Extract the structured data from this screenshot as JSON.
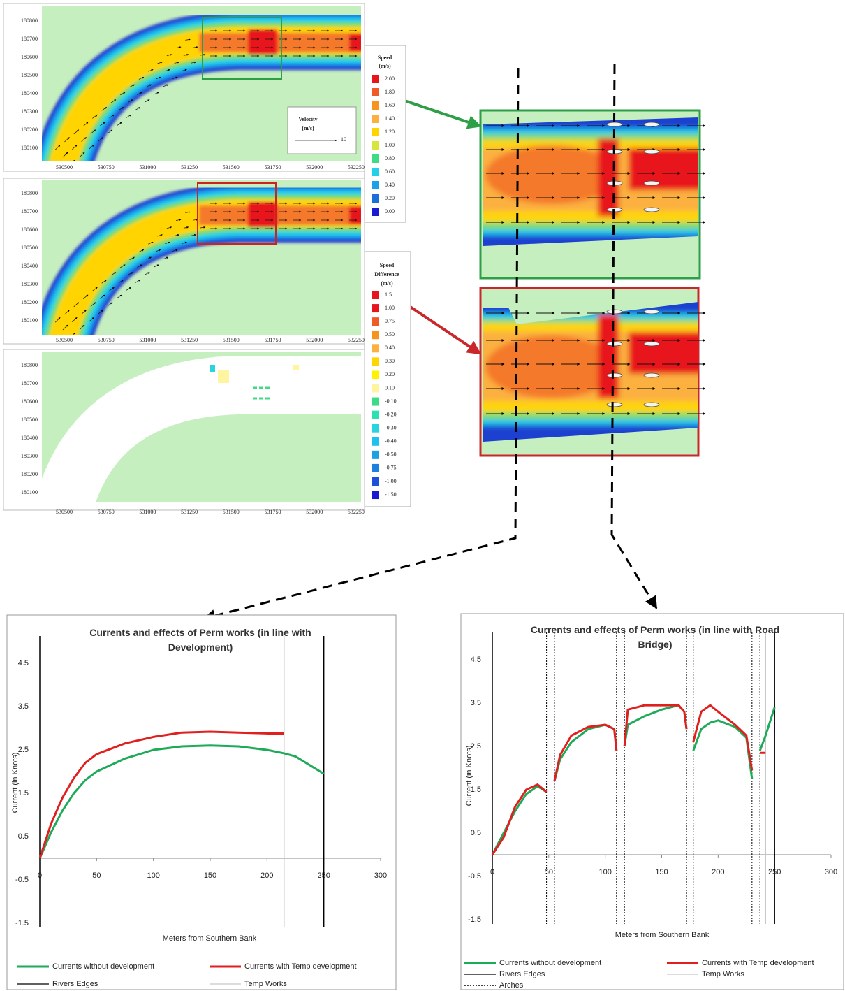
{
  "maps": {
    "yticks": [
      180100,
      180200,
      180300,
      180400,
      180500,
      180600,
      180700,
      180800
    ],
    "xticks": [
      530500,
      530750,
      531000,
      531250,
      531500,
      531750,
      532000,
      532250
    ]
  },
  "velocity_legend": {
    "title": "Velocity",
    "unit": "(m/s)",
    "label": 10
  },
  "speed_legend": {
    "title": "Speed",
    "unit": "(m/s)",
    "items": [
      {
        "label": "2.00",
        "color": "#e8141b"
      },
      {
        "label": "1.80",
        "color": "#f05a28"
      },
      {
        "label": "1.60",
        "color": "#f7941d"
      },
      {
        "label": "1.40",
        "color": "#fbb040"
      },
      {
        "label": "1.20",
        "color": "#ffd400"
      },
      {
        "label": "1.00",
        "color": "#d7e63a"
      },
      {
        "label": "0.80",
        "color": "#3ddc84"
      },
      {
        "label": "0.60",
        "color": "#22d0e8"
      },
      {
        "label": "0.40",
        "color": "#1ca0e8"
      },
      {
        "label": "0.20",
        "color": "#1c6fd9"
      },
      {
        "label": "0.00",
        "color": "#1a1ad0"
      }
    ]
  },
  "speed_difference_legend": {
    "title": [
      "Speed",
      "Difference"
    ],
    "unit": "(m/s)",
    "items": [
      {
        "label": "1.5",
        "color": "#e8141b"
      },
      {
        "label": "1.00",
        "color": "#e8141b"
      },
      {
        "label": "0.75",
        "color": "#f05a28"
      },
      {
        "label": "0.50",
        "color": "#f7941d"
      },
      {
        "label": "0.40",
        "color": "#fbb040"
      },
      {
        "label": "0.30",
        "color": "#ffd400"
      },
      {
        "label": "0.20",
        "color": "#fff200"
      },
      {
        "label": "0.10",
        "color": "#fff5a0"
      },
      {
        "label": "-0.10",
        "color": "#3ddc84"
      },
      {
        "label": "-0.20",
        "color": "#2de0b0"
      },
      {
        "label": "-0.30",
        "color": "#29d4e0"
      },
      {
        "label": "-0.40",
        "color": "#1ec0f0"
      },
      {
        "label": "-0.50",
        "color": "#1ca0e0"
      },
      {
        "label": "-0.75",
        "color": "#1c80e0"
      },
      {
        "label": "-1.00",
        "color": "#1c50d9"
      },
      {
        "label": "-1.50",
        "color": "#1a1ad0"
      }
    ]
  },
  "chart_data": [
    {
      "type": "line",
      "title": "Currents and effects of Perm works (in line with Development)",
      "x_label": "Meters from Southern Bank",
      "y_label": "Current  (in Knots)",
      "x": [
        0,
        10,
        20,
        30,
        40,
        50,
        75,
        100,
        125,
        150,
        175,
        200,
        215,
        225,
        250
      ],
      "series": [
        {
          "name": "Currents without development",
          "color": "#1faa5a",
          "values": [
            0,
            0.6,
            1.1,
            1.5,
            1.8,
            2.0,
            2.3,
            2.5,
            2.58,
            2.6,
            2.58,
            2.5,
            2.42,
            2.35,
            1.95
          ]
        },
        {
          "name": "Currents with Temp development",
          "color": "#e0201e",
          "values": [
            0,
            0.8,
            1.4,
            1.85,
            2.2,
            2.4,
            2.65,
            2.8,
            2.9,
            2.92,
            2.9,
            2.88,
            2.88,
            null,
            null
          ]
        }
      ],
      "reference_lines": [
        {
          "name": "Rivers Edges",
          "color": "#000000",
          "style": "solid",
          "x": [
            0,
            250
          ]
        },
        {
          "name": "Temp Works",
          "color": "#c8c8c8",
          "style": "solid",
          "x": [
            215
          ]
        }
      ],
      "xlim": [
        0,
        300
      ],
      "xticks": [
        0,
        50,
        100,
        150,
        200,
        250,
        300
      ],
      "ylim": [
        -1.5,
        5
      ],
      "yticks": [
        -1.5,
        -0.5,
        0.5,
        1.5,
        2.5,
        3.5,
        4.5
      ]
    },
    {
      "type": "line",
      "title": "Currents and effects of Perm works (in line with Road Bridge)",
      "x_label": "Meters from Southern Bank",
      "y_label": "Current  (in Knots)",
      "x": [
        0,
        10,
        20,
        30,
        40,
        48,
        52,
        55,
        60,
        70,
        85,
        100,
        108,
        110,
        113,
        117,
        120,
        135,
        150,
        165,
        170,
        172,
        175,
        178,
        185,
        193,
        200,
        215,
        225,
        230,
        234,
        237,
        242,
        250
      ],
      "series": [
        {
          "name": "Currents without development",
          "color": "#1faa5a",
          "values": [
            0,
            0.5,
            1.0,
            1.4,
            1.58,
            1.45,
            null,
            1.7,
            2.2,
            2.6,
            2.9,
            3.0,
            2.9,
            2.4,
            null,
            2.5,
            3.0,
            3.2,
            3.35,
            3.45,
            3.3,
            2.9,
            null,
            2.4,
            2.9,
            3.05,
            3.1,
            2.95,
            2.7,
            1.75,
            null,
            2.4,
            2.75,
            3.4
          ]
        },
        {
          "name": "Currents with Temp development",
          "color": "#e0201e",
          "values": [
            0,
            0.4,
            1.1,
            1.5,
            1.62,
            1.45,
            null,
            1.7,
            2.3,
            2.75,
            2.95,
            3.0,
            2.9,
            2.4,
            null,
            2.5,
            3.35,
            3.45,
            3.45,
            3.45,
            3.3,
            2.9,
            null,
            2.6,
            3.3,
            3.45,
            3.3,
            3.0,
            2.75,
            1.95,
            null,
            2.35,
            2.35,
            null
          ]
        }
      ],
      "reference_lines": [
        {
          "name": "Rivers Edges",
          "color": "#000000",
          "style": "solid",
          "x": [
            0,
            250
          ]
        },
        {
          "name": "Temp Works",
          "color": "#c8c8c8",
          "style": "solid",
          "x": [
            242
          ]
        },
        {
          "name": "Arches",
          "color": "#000000",
          "style": "dotted",
          "x": [
            48,
            55,
            110,
            117,
            172,
            178,
            230,
            237
          ]
        }
      ],
      "xlim": [
        0,
        300
      ],
      "xticks": [
        0,
        50,
        100,
        150,
        200,
        250,
        300
      ],
      "ylim": [
        -1.5,
        5
      ],
      "yticks": [
        -1.5,
        -0.5,
        0.5,
        1.5,
        2.5,
        3.5,
        4.5
      ]
    }
  ]
}
